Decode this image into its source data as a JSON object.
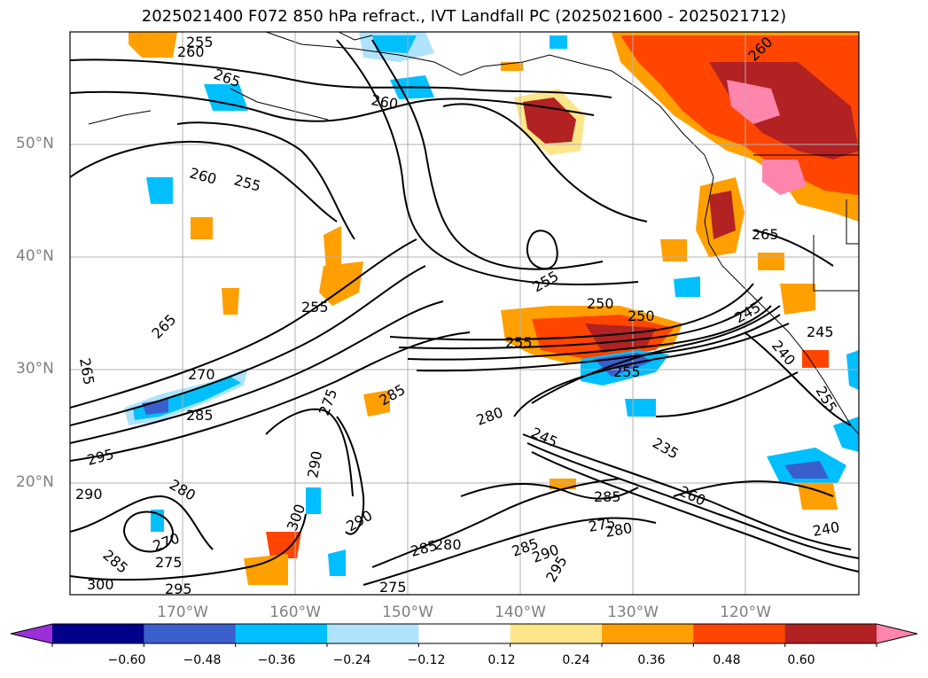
{
  "title": "2025021400 F072 850 hPa refract., IVT Landfall PC (2025021600 - 2025021712)",
  "map": {
    "lat_labels": [
      "50°N",
      "40°N",
      "30°N",
      "20°N"
    ],
    "lon_labels": [
      "170°W",
      "160°W",
      "150°W",
      "140°W",
      "130°W",
      "120°W"
    ],
    "contour_labels": [
      "255",
      "260",
      "265",
      "260",
      "260",
      "255",
      "265",
      "255",
      "255",
      "265",
      "250",
      "250",
      "245",
      "255",
      "255",
      "265",
      "270",
      "285",
      "285",
      "295",
      "290",
      "280",
      "270",
      "275",
      "285",
      "300",
      "295",
      "275",
      "290",
      "300",
      "290",
      "280",
      "285",
      "275",
      "280",
      "285",
      "290",
      "295",
      "235",
      "260",
      "240",
      "245",
      "245",
      "240",
      "255",
      "285",
      "275",
      "280",
      "260"
    ]
  },
  "colorbar": {
    "ticks": [
      "−0.60",
      "−0.48",
      "−0.36",
      "−0.24",
      "−0.12",
      "0.12",
      "0.24",
      "0.36",
      "0.48",
      "0.60"
    ],
    "colors": [
      "#9b30d8",
      "#00008b",
      "#3a5fcd",
      "#00bfff",
      "#aee3fb",
      "#ffffff",
      "#fde68a",
      "#ff9f00",
      "#ff4500",
      "#b22222",
      "#ff85ac"
    ]
  }
}
